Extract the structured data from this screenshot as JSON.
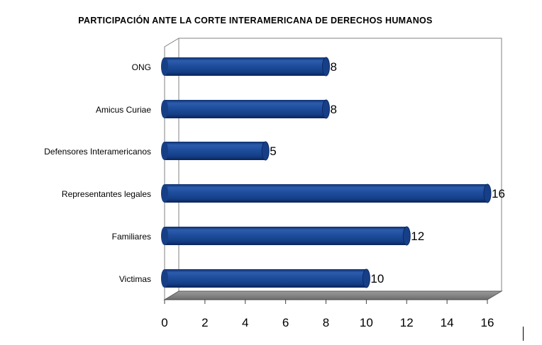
{
  "chart_data": {
    "type": "bar",
    "orientation": "horizontal",
    "style": "3d-cylinder",
    "title": "PARTICIPACIÓN ANTE LA CORTE INTERAMERICANA DE DERECHOS HUMANOS",
    "categories": [
      "ONG",
      "Amicus Curiae",
      "Defensores Interamericanos",
      "Representantes legales",
      "Familiares",
      "Victimas"
    ],
    "values": [
      8,
      8,
      5,
      16,
      12,
      10
    ],
    "data_labels": [
      "8",
      "8",
      "5",
      "16",
      "12",
      "10"
    ],
    "xlim": [
      0,
      16
    ],
    "x_ticks": [
      0,
      2,
      4,
      6,
      8,
      10,
      12,
      14,
      16
    ],
    "x_tick_labels": [
      "0",
      "2",
      "4",
      "6",
      "8",
      "10",
      "12",
      "14",
      "16"
    ],
    "grid": false,
    "legend": "none",
    "colors": {
      "bar": "#1a4a96",
      "bar_dark": "#0b2a66",
      "bar_light": "#3f6fbd",
      "floor": "#7f7f7f",
      "frame": "#808080"
    }
  }
}
